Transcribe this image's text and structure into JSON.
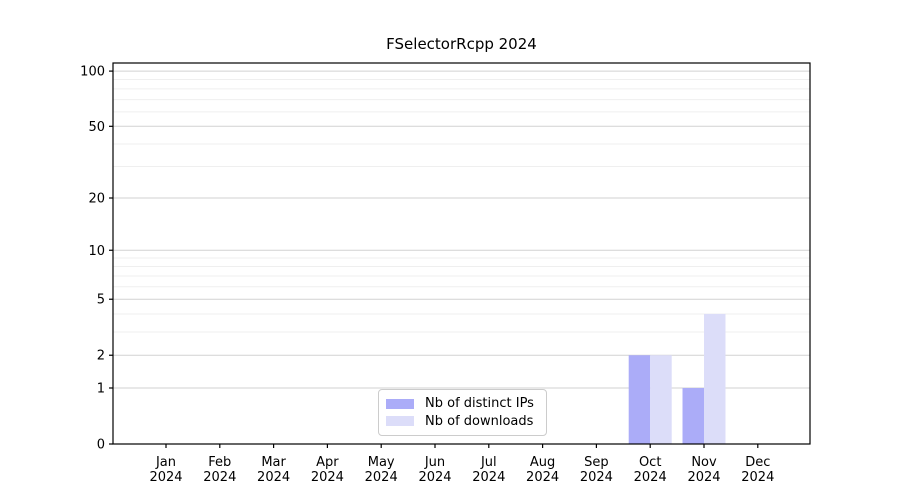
{
  "title": "FSelectorRcpp 2024",
  "chart_data": {
    "type": "bar",
    "title": "FSelectorRcpp 2024",
    "xlabel": "",
    "ylabel": "",
    "categories": [
      "Jan 2024",
      "Feb 2024",
      "Mar 2024",
      "Apr 2024",
      "May 2024",
      "Jun 2024",
      "Jul 2024",
      "Aug 2024",
      "Sep 2024",
      "Oct 2024",
      "Nov 2024",
      "Dec 2024"
    ],
    "series": [
      {
        "name": "Nb of distinct IPs",
        "color": "#abacf8",
        "values": [
          0,
          0,
          0,
          0,
          0,
          0,
          0,
          0,
          0,
          2,
          1,
          0
        ]
      },
      {
        "name": "Nb of downloads",
        "color": "#dcddf9",
        "values": [
          0,
          0,
          0,
          0,
          0,
          0,
          0,
          0,
          0,
          2,
          4,
          0
        ]
      }
    ],
    "y_scale": "log1p",
    "y_major_ticks": [
      0,
      1,
      2,
      5,
      10,
      20,
      50,
      100
    ],
    "y_minor_gridlines": [
      3,
      4,
      6,
      7,
      8,
      9,
      30,
      40,
      60,
      70,
      80,
      90
    ],
    "ylim": [
      0,
      110
    ],
    "grid": true,
    "grid_major_color": "#d2d2d2",
    "grid_minor_color": "#efefef",
    "axis_color": "#000000",
    "legend_position": "bottom-center"
  }
}
